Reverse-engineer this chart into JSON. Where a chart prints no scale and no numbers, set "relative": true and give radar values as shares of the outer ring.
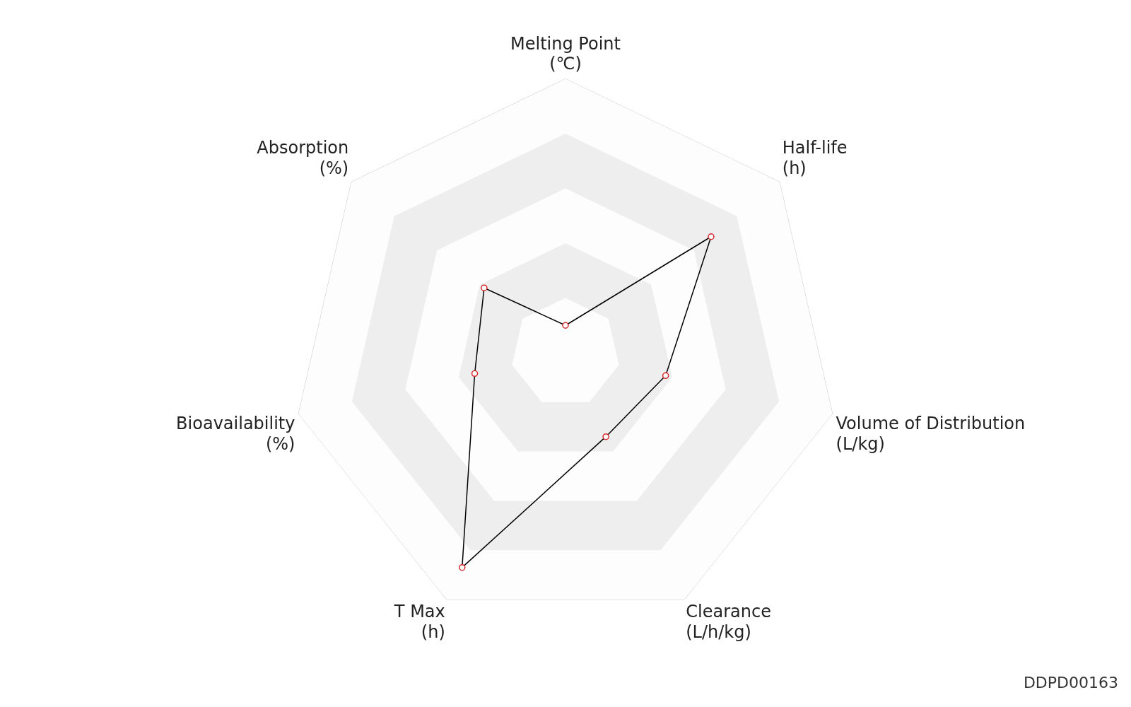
{
  "chart_data": {
    "type": "radar",
    "relative": true,
    "categories": [
      "Melting Point (℃)",
      "Half-life (h)",
      "Volume of Distribution (L/kg)",
      "Clearance (L/h/kg)",
      "T Max (h)",
      "Bioavailability (%)",
      "Absorption (%)"
    ],
    "series": [
      {
        "color": "#000000",
        "values": [
          0.1,
          0.68,
          0.375,
          0.34,
          0.87,
          0.34,
          0.38
        ]
      }
    ],
    "marker": "circle",
    "legend": false,
    "annotations": [
      "DDPD00163"
    ]
  }
}
